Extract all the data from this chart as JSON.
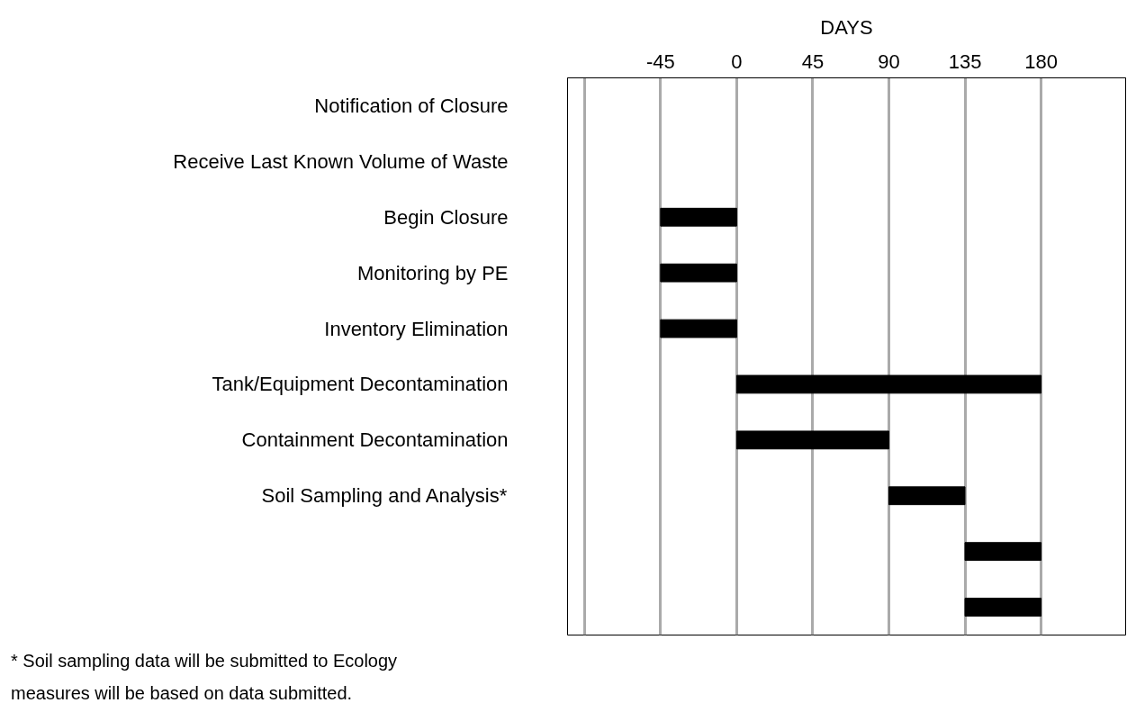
{
  "chart_data": {
    "type": "bar",
    "orientation": "horizontal",
    "title": "DAYS",
    "categories": [
      "Notification of Closure",
      "Receive Last Known Volume of Waste",
      "Begin Closure",
      "Monitoring by PE",
      "Inventory Elimination",
      "Tank/Equipment Decontamination",
      "Containment Decontamination",
      "Soil Sampling and Analysis*",
      null,
      null
    ],
    "base": [
      null,
      null,
      -45,
      -45,
      -45,
      0,
      0,
      90,
      135,
      135
    ],
    "values": [
      null,
      null,
      45,
      45,
      45,
      180,
      90,
      45,
      45,
      45
    ],
    "color": "#000000",
    "xlim": [
      -100,
      230
    ],
    "xticks": [
      {
        "value": -90,
        "label": null
      },
      -45,
      0,
      45,
      90,
      135,
      180
    ],
    "grid": "x",
    "annotations": [
      "* Soil sampling data will be submitted to Ecology",
      "measures will be based on data submitted."
    ]
  }
}
